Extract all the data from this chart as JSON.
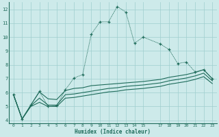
{
  "xlabel": "Humidex (Indice chaleur)",
  "bg_color": "#cdeaea",
  "grid_color": "#9ecece",
  "line_color": "#1e6b5a",
  "xlim": [
    -0.5,
    23.5
  ],
  "ylim": [
    3.8,
    12.5
  ],
  "yticks": [
    4,
    5,
    6,
    7,
    8,
    9,
    10,
    11,
    12
  ],
  "xticks": [
    0,
    1,
    2,
    3,
    4,
    5,
    6,
    7,
    8,
    9,
    10,
    11,
    12,
    13,
    14,
    15,
    17,
    18,
    19,
    20,
    21,
    22,
    23
  ],
  "line1_x": [
    0,
    1,
    2,
    3,
    4,
    5,
    6,
    7,
    8,
    9,
    10,
    11,
    12,
    13,
    14,
    15,
    17,
    18,
    19,
    20,
    21,
    22,
    23
  ],
  "line1_y": [
    5.85,
    4.1,
    5.1,
    6.1,
    5.0,
    5.05,
    6.2,
    7.05,
    7.3,
    10.2,
    11.1,
    11.1,
    12.2,
    11.8,
    9.55,
    10.0,
    9.5,
    9.1,
    8.1,
    8.2,
    7.5,
    7.65,
    7.0
  ],
  "line2_x": [
    0,
    1,
    2,
    3,
    4,
    5,
    6,
    7,
    8,
    9,
    10,
    11,
    12,
    13,
    14,
    15,
    17,
    18,
    19,
    20,
    21,
    22,
    23
  ],
  "line2_y": [
    5.85,
    4.1,
    5.1,
    6.05,
    5.55,
    5.5,
    6.15,
    6.3,
    6.35,
    6.5,
    6.55,
    6.6,
    6.65,
    6.7,
    6.75,
    6.8,
    6.95,
    7.1,
    7.2,
    7.3,
    7.45,
    7.65,
    7.0
  ],
  "line3_x": [
    0,
    1,
    2,
    3,
    4,
    5,
    6,
    7,
    8,
    9,
    10,
    11,
    12,
    13,
    14,
    15,
    17,
    18,
    19,
    20,
    21,
    22,
    23
  ],
  "line3_y": [
    5.85,
    4.1,
    5.05,
    5.6,
    5.1,
    5.1,
    5.85,
    5.9,
    6.0,
    6.1,
    6.2,
    6.3,
    6.35,
    6.45,
    6.5,
    6.55,
    6.7,
    6.85,
    6.95,
    7.05,
    7.2,
    7.4,
    6.85
  ],
  "line4_x": [
    0,
    1,
    2,
    3,
    4,
    5,
    6,
    7,
    8,
    9,
    10,
    11,
    12,
    13,
    14,
    15,
    17,
    18,
    19,
    20,
    21,
    22,
    23
  ],
  "line4_y": [
    5.85,
    4.1,
    5.0,
    5.3,
    5.0,
    5.0,
    5.6,
    5.65,
    5.75,
    5.85,
    5.95,
    6.05,
    6.1,
    6.2,
    6.25,
    6.3,
    6.45,
    6.6,
    6.7,
    6.8,
    6.95,
    7.15,
    6.65
  ]
}
